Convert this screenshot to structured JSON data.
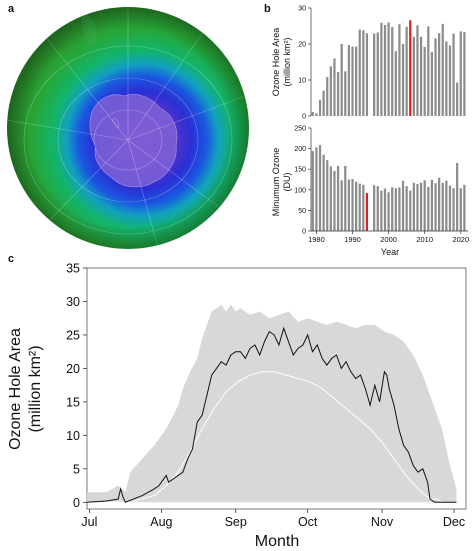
{
  "panels": {
    "a": {
      "letter": "a",
      "image": "antarctic-ozone-hole-globe"
    },
    "b": {
      "letter": "b"
    },
    "c": {
      "letter": "c"
    }
  },
  "colors": {
    "bar": "#8c8c8c",
    "highlight": "#e02020",
    "envelope": "#d8d8d8",
    "current_line": "#111111",
    "mean_line": "#ffffff"
  },
  "chart_data": [
    {
      "id": "b-top",
      "type": "bar",
      "ylabel": "Ozone Hole Area",
      "yunit": "(million km²)",
      "ylim": [
        0,
        30
      ],
      "yticks": [
        0,
        10,
        20,
        30
      ],
      "xlim": [
        1978.5,
        2022
      ],
      "highlight_year": 2006,
      "years": [
        1979,
        1980,
        1981,
        1982,
        1983,
        1984,
        1985,
        1986,
        1987,
        1988,
        1989,
        1990,
        1991,
        1992,
        1993,
        1994,
        1995,
        1996,
        1997,
        1998,
        1999,
        2000,
        2001,
        2002,
        2003,
        2004,
        2005,
        2006,
        2007,
        2008,
        2009,
        2010,
        2011,
        2012,
        2013,
        2014,
        2015,
        2016,
        2017,
        2018,
        2019,
        2020,
        2021
      ],
      "values": [
        1.1,
        0.8,
        4.5,
        7.0,
        10.8,
        13.8,
        16.0,
        12.2,
        20.0,
        12.4,
        19.7,
        19.3,
        19.3,
        24.0,
        23.8,
        23.0,
        null,
        22.9,
        23.2,
        25.9,
        25.3,
        26.0,
        24.7,
        18.0,
        25.5,
        20.0,
        24.8,
        26.6,
        22.0,
        25.2,
        22.0,
        19.2,
        24.9,
        17.8,
        21.6,
        23.0,
        25.6,
        20.7,
        19.6,
        22.9,
        9.3,
        23.5,
        23.3
      ]
    },
    {
      "id": "b-bottom",
      "type": "bar",
      "ylabel": "Minumum Ozone",
      "yunit": "(DU)",
      "ylim": [
        0,
        250
      ],
      "yticks": [
        0,
        50,
        100,
        150,
        200,
        250
      ],
      "xlim": [
        1978.5,
        2022
      ],
      "xticks": [
        1980,
        1990,
        2000,
        2010,
        2020
      ],
      "xlabel": "Year",
      "highlight_year": 1994,
      "years": [
        1979,
        1980,
        1981,
        1982,
        1983,
        1984,
        1985,
        1986,
        1987,
        1988,
        1989,
        1990,
        1991,
        1992,
        1993,
        1994,
        1995,
        1996,
        1997,
        1998,
        1999,
        2000,
        2001,
        2002,
        2003,
        2004,
        2005,
        2006,
        2007,
        2008,
        2009,
        2010,
        2011,
        2012,
        2013,
        2014,
        2015,
        2016,
        2017,
        2018,
        2019,
        2020,
        2021
      ],
      "values": [
        194,
        203,
        209,
        185,
        172,
        157,
        146,
        158,
        123,
        158,
        125,
        126,
        120,
        115,
        112,
        92,
        null,
        111,
        109,
        98,
        103,
        94,
        106,
        104,
        106,
        122,
        109,
        98,
        117,
        114,
        117,
        123,
        107,
        124,
        116,
        129,
        117,
        122,
        110,
        104,
        165,
        104,
        112
      ]
    },
    {
      "id": "c",
      "type": "area",
      "xlabel": "Month",
      "ylabel": "Ozone Hole Area",
      "yunit": "(million km²)",
      "ylim": [
        -1,
        35
      ],
      "yticks": [
        0,
        5,
        10,
        15,
        20,
        25,
        30,
        35
      ],
      "xlim": [
        182,
        340
      ],
      "month_ticks": [
        {
          "label": "Jul",
          "day": 183
        },
        {
          "label": "Aug",
          "day": 213
        },
        {
          "label": "Sep",
          "day": 244
        },
        {
          "label": "Oct",
          "day": 274
        },
        {
          "label": "Nov",
          "day": 305
        },
        {
          "label": "Dec",
          "day": 335
        }
      ],
      "series": [
        {
          "role": "envelope",
          "x": [
            182,
            190,
            195,
            198,
            200,
            205,
            210,
            213,
            215,
            218,
            220,
            222,
            225,
            228,
            230,
            232,
            234,
            236,
            238,
            240,
            242,
            244,
            246,
            250,
            254,
            258,
            262,
            266,
            270,
            274,
            278,
            282,
            286,
            290,
            294,
            298,
            302,
            306,
            310,
            314,
            318,
            322,
            326,
            330,
            333,
            336
          ],
          "upper": [
            1.5,
            1.5,
            2.5,
            1.5,
            4.5,
            6.5,
            8.5,
            10.0,
            11.0,
            13.0,
            14.5,
            17.0,
            19.5,
            21.5,
            24.5,
            26.5,
            28.5,
            29.0,
            29.5,
            28.5,
            29.5,
            28.5,
            29.0,
            28.0,
            28.5,
            27.5,
            28.0,
            28.5,
            27.0,
            27.5,
            27.0,
            26.5,
            27.0,
            26.5,
            26.0,
            26.5,
            26.5,
            25.5,
            25.0,
            24.0,
            22.0,
            19.0,
            15.0,
            11.0,
            6.0,
            2.0
          ],
          "lower": [
            0,
            0,
            0,
            0,
            0,
            0,
            0,
            0,
            0,
            0,
            0,
            0,
            0,
            0,
            0,
            0,
            0,
            0,
            0,
            0,
            0,
            0,
            0,
            0,
            0,
            0,
            0,
            0,
            0,
            0,
            0,
            0,
            0,
            0,
            0,
            0,
            0,
            0,
            0,
            0,
            0,
            0,
            0,
            0,
            0,
            0
          ]
        },
        {
          "role": "current-year",
          "x": [
            182,
            190,
            195,
            196,
            197,
            198,
            200,
            205,
            210,
            212,
            213,
            215,
            216,
            218,
            220,
            222,
            224,
            226,
            228,
            230,
            232,
            234,
            236,
            238,
            240,
            242,
            244,
            246,
            248,
            250,
            252,
            254,
            256,
            258,
            260,
            262,
            264,
            266,
            268,
            270,
            272,
            274,
            276,
            278,
            280,
            282,
            284,
            286,
            288,
            290,
            292,
            294,
            296,
            298,
            300,
            302,
            304,
            306,
            307,
            308,
            310,
            312,
            314,
            316,
            318,
            320,
            322,
            324,
            325,
            327,
            330,
            333,
            336
          ],
          "y": [
            0,
            0.2,
            0.5,
            2.0,
            0.8,
            0,
            0.3,
            1.0,
            2.0,
            2.5,
            3.0,
            4.0,
            3.0,
            3.5,
            4.0,
            4.5,
            6.5,
            8.0,
            12.0,
            13.0,
            16.0,
            19.0,
            20.0,
            21.0,
            20.5,
            22.0,
            22.5,
            22.5,
            21.5,
            23.0,
            23.5,
            22.0,
            24.0,
            25.5,
            25.0,
            23.5,
            26.0,
            24.0,
            22.0,
            23.0,
            23.5,
            25.0,
            22.5,
            23.5,
            21.5,
            20.5,
            21.5,
            22.0,
            20.0,
            21.0,
            19.5,
            18.5,
            19.0,
            17.0,
            14.5,
            17.5,
            15.0,
            19.5,
            19.0,
            17.0,
            14.5,
            11.0,
            8.5,
            7.5,
            5.5,
            4.5,
            5.0,
            3.0,
            0.5,
            0,
            0,
            0,
            0
          ]
        },
        {
          "role": "mean",
          "x": [
            182,
            200,
            210,
            215,
            220,
            225,
            230,
            235,
            240,
            245,
            250,
            255,
            260,
            265,
            270,
            275,
            280,
            285,
            290,
            295,
            300,
            305,
            310,
            315,
            320,
            325,
            328,
            330
          ],
          "y": [
            0,
            0,
            1.0,
            2.5,
            4.5,
            7.5,
            11.0,
            14.0,
            16.5,
            18.0,
            19.0,
            19.5,
            19.5,
            19.0,
            18.5,
            18.0,
            17.0,
            15.5,
            14.0,
            12.5,
            11.0,
            9.0,
            6.5,
            4.0,
            2.0,
            0.5,
            0.5,
            0
          ]
        }
      ]
    }
  ]
}
